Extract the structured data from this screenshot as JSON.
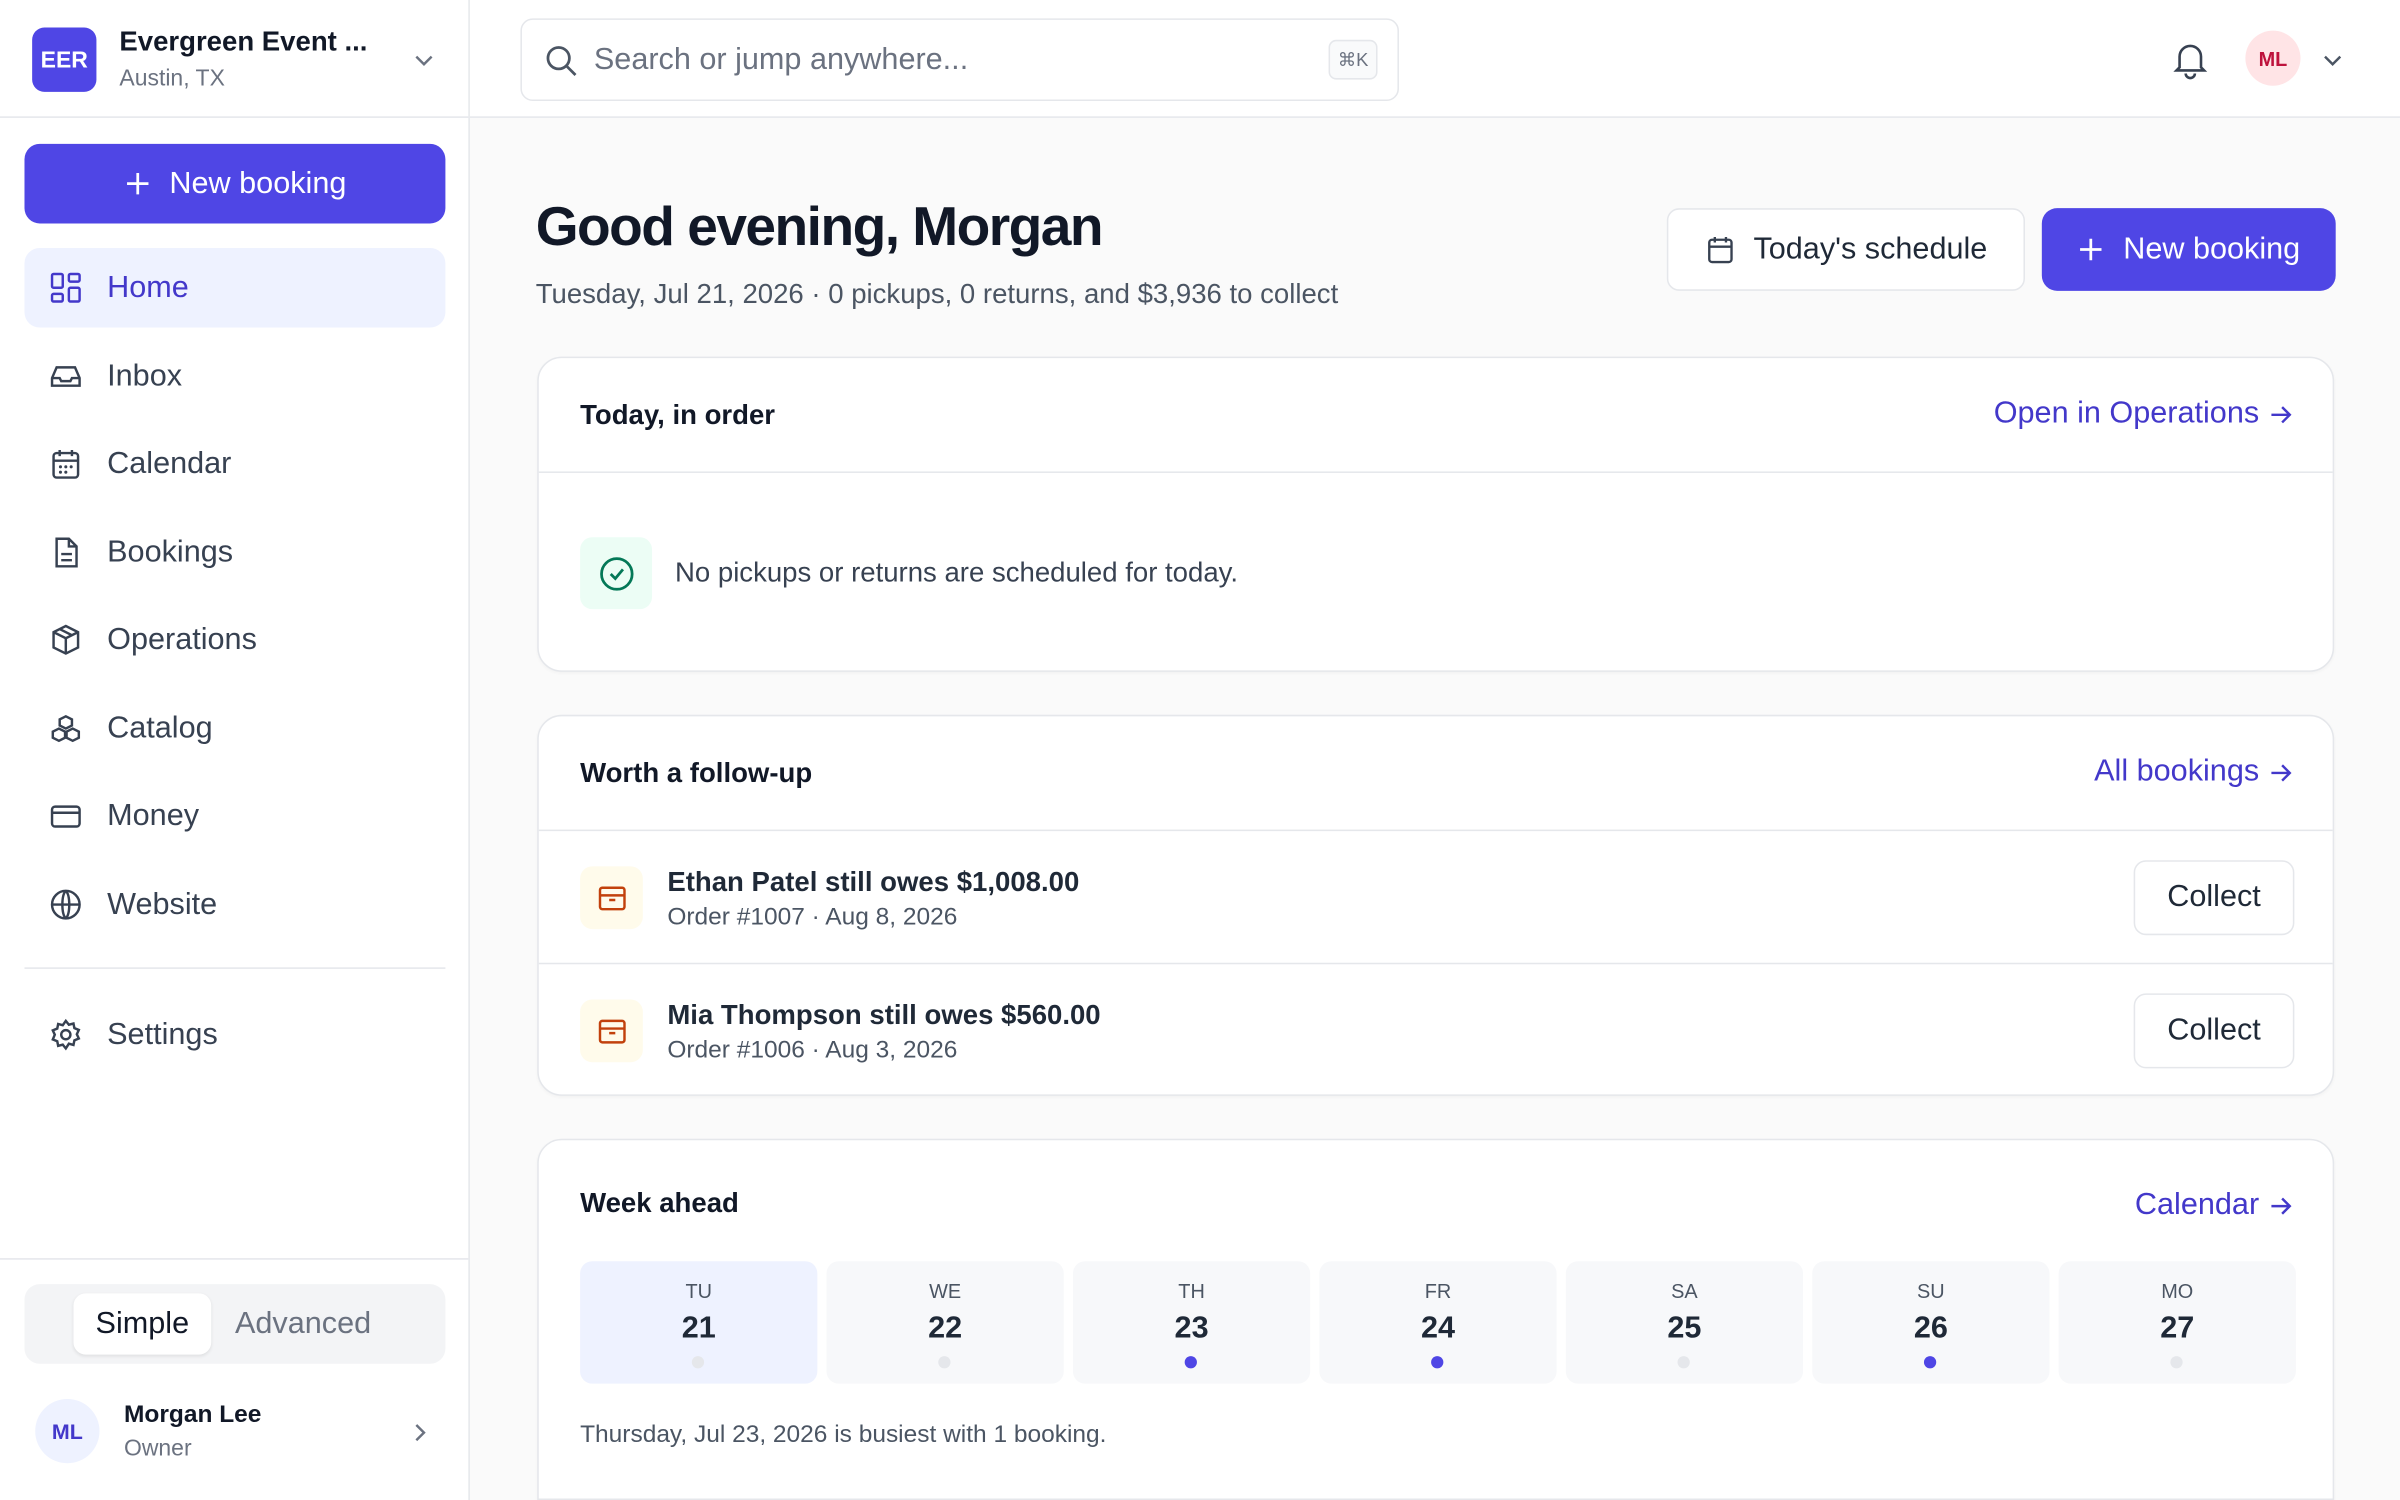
{
  "org": {
    "initials": "EER",
    "name": "Evergreen Event ...",
    "location": "Austin, TX"
  },
  "search": {
    "placeholder": "Search or jump anywhere...",
    "shortcut": "⌘K"
  },
  "user": {
    "initials": "ML",
    "name": "Morgan Lee",
    "role": "Owner"
  },
  "sidebar": {
    "new_booking": "New booking",
    "nav": [
      {
        "label": "Home",
        "active": true
      },
      {
        "label": "Inbox",
        "active": false
      },
      {
        "label": "Calendar",
        "active": false
      },
      {
        "label": "Bookings",
        "active": false
      },
      {
        "label": "Operations",
        "active": false
      },
      {
        "label": "Catalog",
        "active": false
      },
      {
        "label": "Money",
        "active": false
      },
      {
        "label": "Website",
        "active": false
      }
    ],
    "settings": "Settings",
    "modes": [
      {
        "label": "Simple",
        "active": true
      },
      {
        "label": "Advanced",
        "active": false
      }
    ]
  },
  "main": {
    "greeting": "Good evening, Morgan",
    "summary": "Tuesday, Jul 21, 2026 · 0 pickups, 0 returns, and $3,936 to collect",
    "actions": [
      "Today's schedule",
      "New booking"
    ],
    "today": {
      "title": "Today, in order",
      "link": "Open in Operations",
      "empty": "No pickups or returns are scheduled for today."
    },
    "followup": {
      "title": "Worth a follow-up",
      "link": "All bookings",
      "items": [
        {
          "title": "Ethan Patel still owes $1,008.00",
          "meta": "Order #1007 · Aug 8, 2026",
          "action": "Collect"
        },
        {
          "title": "Mia Thompson still owes $560.00",
          "meta": "Order #1006 · Aug 3, 2026",
          "action": "Collect"
        }
      ]
    },
    "week": {
      "title": "Week ahead",
      "link": "Calendar",
      "days": [
        {
          "dow": "TU",
          "date": "21",
          "busy": false,
          "selected": true
        },
        {
          "dow": "WE",
          "date": "22",
          "busy": false,
          "selected": false
        },
        {
          "dow": "TH",
          "date": "23",
          "busy": true,
          "selected": false
        },
        {
          "dow": "FR",
          "date": "24",
          "busy": true,
          "selected": false
        },
        {
          "dow": "SA",
          "date": "25",
          "busy": false,
          "selected": false
        },
        {
          "dow": "SU",
          "date": "26",
          "busy": true,
          "selected": false
        },
        {
          "dow": "MO",
          "date": "27",
          "busy": false,
          "selected": false
        }
      ],
      "note": "Thursday, Jul 23, 2026 is busiest with 1 booking."
    }
  }
}
